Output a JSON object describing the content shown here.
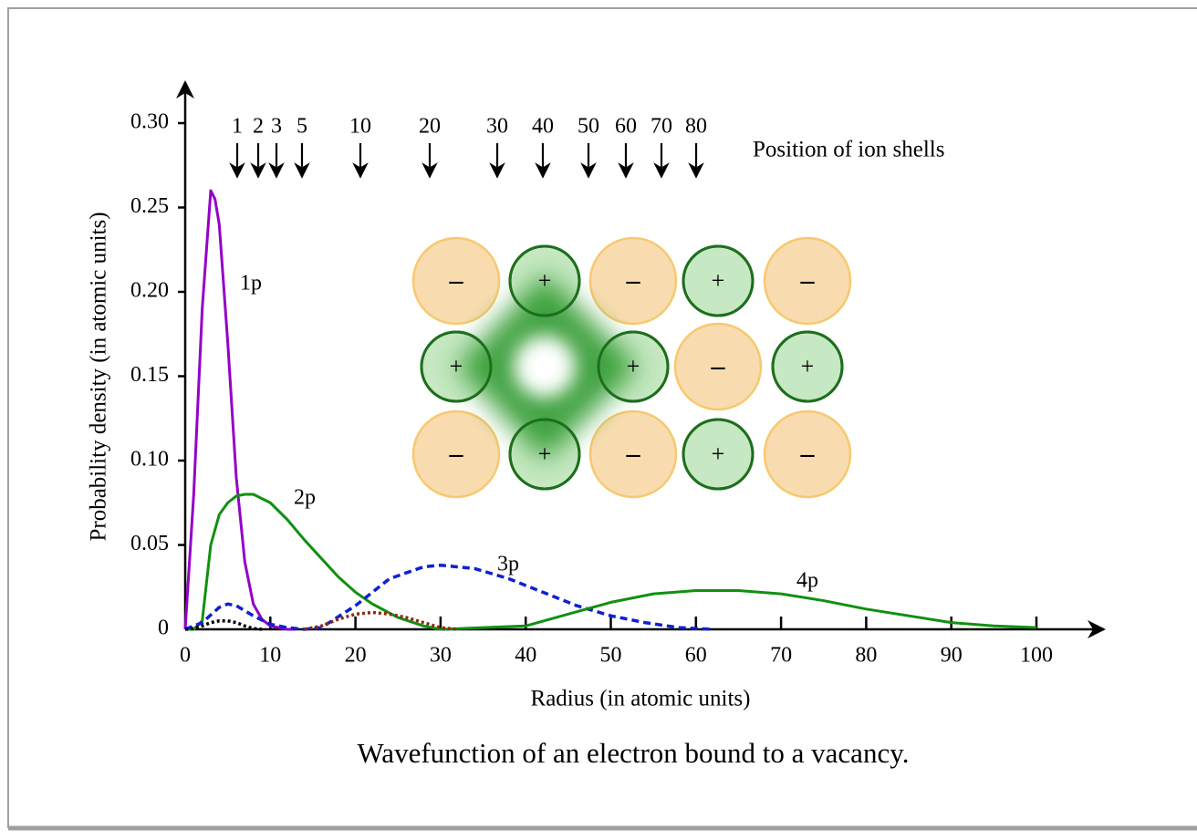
{
  "chart_data": {
    "type": "line",
    "title": "Wavefunction of an electron bound to a vacancy.",
    "x_label": "Radius (in atomic units)",
    "y_label": "Probability density (in atomic units)",
    "xlim": [
      0,
      100
    ],
    "ylim": [
      0,
      0.3
    ],
    "xticks": [
      0,
      10,
      20,
      30,
      40,
      50,
      60,
      70,
      80,
      90,
      100
    ],
    "yticks": [
      0,
      0.05,
      {
        "value": 0.1,
        "label": "0.10"
      },
      0.15,
      {
        "value": 0.2,
        "label": "0.20"
      },
      0.25,
      {
        "value": 0.3,
        "label": "0.30"
      }
    ],
    "series": [
      {
        "name": "1p",
        "color": "#9400c8",
        "style": "solid",
        "x": [
          0,
          1,
          2,
          3,
          3.5,
          4,
          5,
          6,
          7,
          8,
          9,
          10,
          11,
          12,
          13
        ],
        "values": [
          0,
          0.08,
          0.19,
          0.26,
          0.255,
          0.24,
          0.17,
          0.09,
          0.04,
          0.015,
          0.006,
          0.002,
          0.001,
          0,
          0
        ]
      },
      {
        "name": "2p",
        "color": "#109010",
        "style": "solid",
        "x": [
          0,
          1,
          2,
          3,
          4,
          5,
          6,
          7,
          8,
          10,
          12,
          14,
          16,
          18,
          20,
          22,
          25,
          28,
          30
        ],
        "values": [
          0,
          0,
          0.005,
          0.05,
          0.068,
          0.075,
          0.079,
          0.08,
          0.08,
          0.075,
          0.065,
          0.053,
          0.042,
          0.031,
          0.022,
          0.015,
          0.007,
          0.002,
          0
        ]
      },
      {
        "name": "3p",
        "color": "#1020d0",
        "style": "dashed",
        "x": [
          0,
          2,
          4,
          5,
          6,
          8,
          10,
          12,
          14,
          16,
          20,
          24,
          28,
          30,
          34,
          38,
          42,
          46,
          50,
          54,
          58,
          62
        ],
        "values": [
          0,
          0.004,
          0.013,
          0.015,
          0.014,
          0.008,
          0.003,
          0.001,
          0,
          0.001,
          0.014,
          0.03,
          0.037,
          0.038,
          0.036,
          0.03,
          0.022,
          0.014,
          0.008,
          0.004,
          0.001,
          0
        ]
      },
      {
        "name": "4p",
        "color": "#109010",
        "style": "solid",
        "x": [
          30,
          35,
          40,
          45,
          50,
          55,
          60,
          65,
          70,
          75,
          80,
          85,
          90,
          95,
          100
        ],
        "values": [
          0,
          0.001,
          0.002,
          0.009,
          0.016,
          0.021,
          0.023,
          0.023,
          0.021,
          0.017,
          0.012,
          0.008,
          0.004,
          0.002,
          0.001
        ]
      },
      {
        "color": "#000000",
        "style": "dotted",
        "x": [
          0,
          1,
          2,
          3,
          4,
          5,
          6,
          7,
          8,
          9
        ],
        "values": [
          0,
          0.0005,
          0.002,
          0.004,
          0.005,
          0.005,
          0.004,
          0.002,
          0.0005,
          0
        ]
      },
      {
        "color": "#8b2a10",
        "style": "dotted",
        "x": [
          14,
          16,
          18,
          20,
          22,
          24,
          26,
          28,
          30,
          32
        ],
        "values": [
          0,
          0.002,
          0.006,
          0.009,
          0.01,
          0.009,
          0.007,
          0.004,
          0.001,
          0
        ]
      }
    ],
    "ion_shells": {
      "label": "Position of ion shells",
      "labels": [
        1,
        2,
        3,
        5,
        10,
        20,
        30,
        40,
        50,
        60,
        70,
        80
      ]
    },
    "lattice": {
      "rows": [
        [
          "–",
          "+",
          "–",
          "+",
          "–"
        ],
        [
          "+",
          null,
          "+",
          "–",
          "+"
        ],
        [
          "–",
          "+",
          "–",
          "+",
          "–"
        ]
      ]
    }
  }
}
